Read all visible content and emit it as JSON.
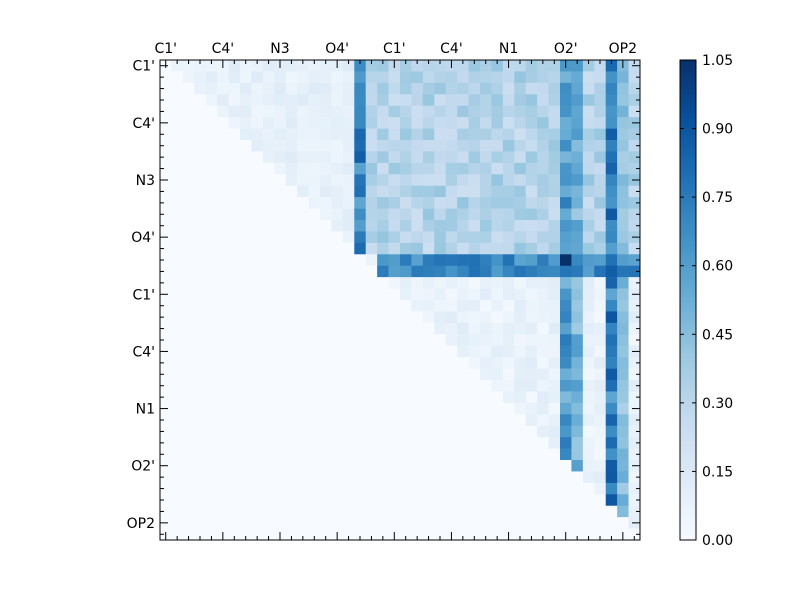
{
  "chart_data": {
    "type": "heatmap",
    "title": "",
    "xlabel": "",
    "ylabel": "",
    "x_tick_labels": [
      "C1'",
      "C4'",
      "N3",
      "O4'",
      "C1'",
      "C4'",
      "N1",
      "O2'",
      "OP2"
    ],
    "y_tick_labels": [
      "C1'",
      "C4'",
      "N3",
      "O4'",
      "C1'",
      "C4'",
      "N1",
      "O2'",
      "OP2"
    ],
    "n_cells": 42,
    "colorbar": {
      "min": 0.0,
      "max": 1.05,
      "ticks": [
        "0.00",
        "0.15",
        "0.30",
        "0.45",
        "0.60",
        "0.75",
        "0.90",
        "1.05"
      ],
      "colormap": "Blues",
      "colors": [
        "#f7fbff",
        "#deebf7",
        "#c6dbef",
        "#9ecae1",
        "#6baed6",
        "#4292c6",
        "#2171b5",
        "#08519c",
        "#08306b"
      ]
    },
    "upper_triangle_only": true,
    "pattern": {
      "band_rows": [
        17,
        18
      ],
      "band_value": 0.72,
      "peak_cell": [
        17,
        35
      ],
      "peak_value": 1.05,
      "strong_columns": [
        17,
        35,
        36,
        39,
        40
      ],
      "strong_column_values": [
        0.72,
        0.62,
        0.52,
        0.75,
        0.45
      ],
      "block_value": 0.32,
      "low_value": 0.08
    }
  }
}
